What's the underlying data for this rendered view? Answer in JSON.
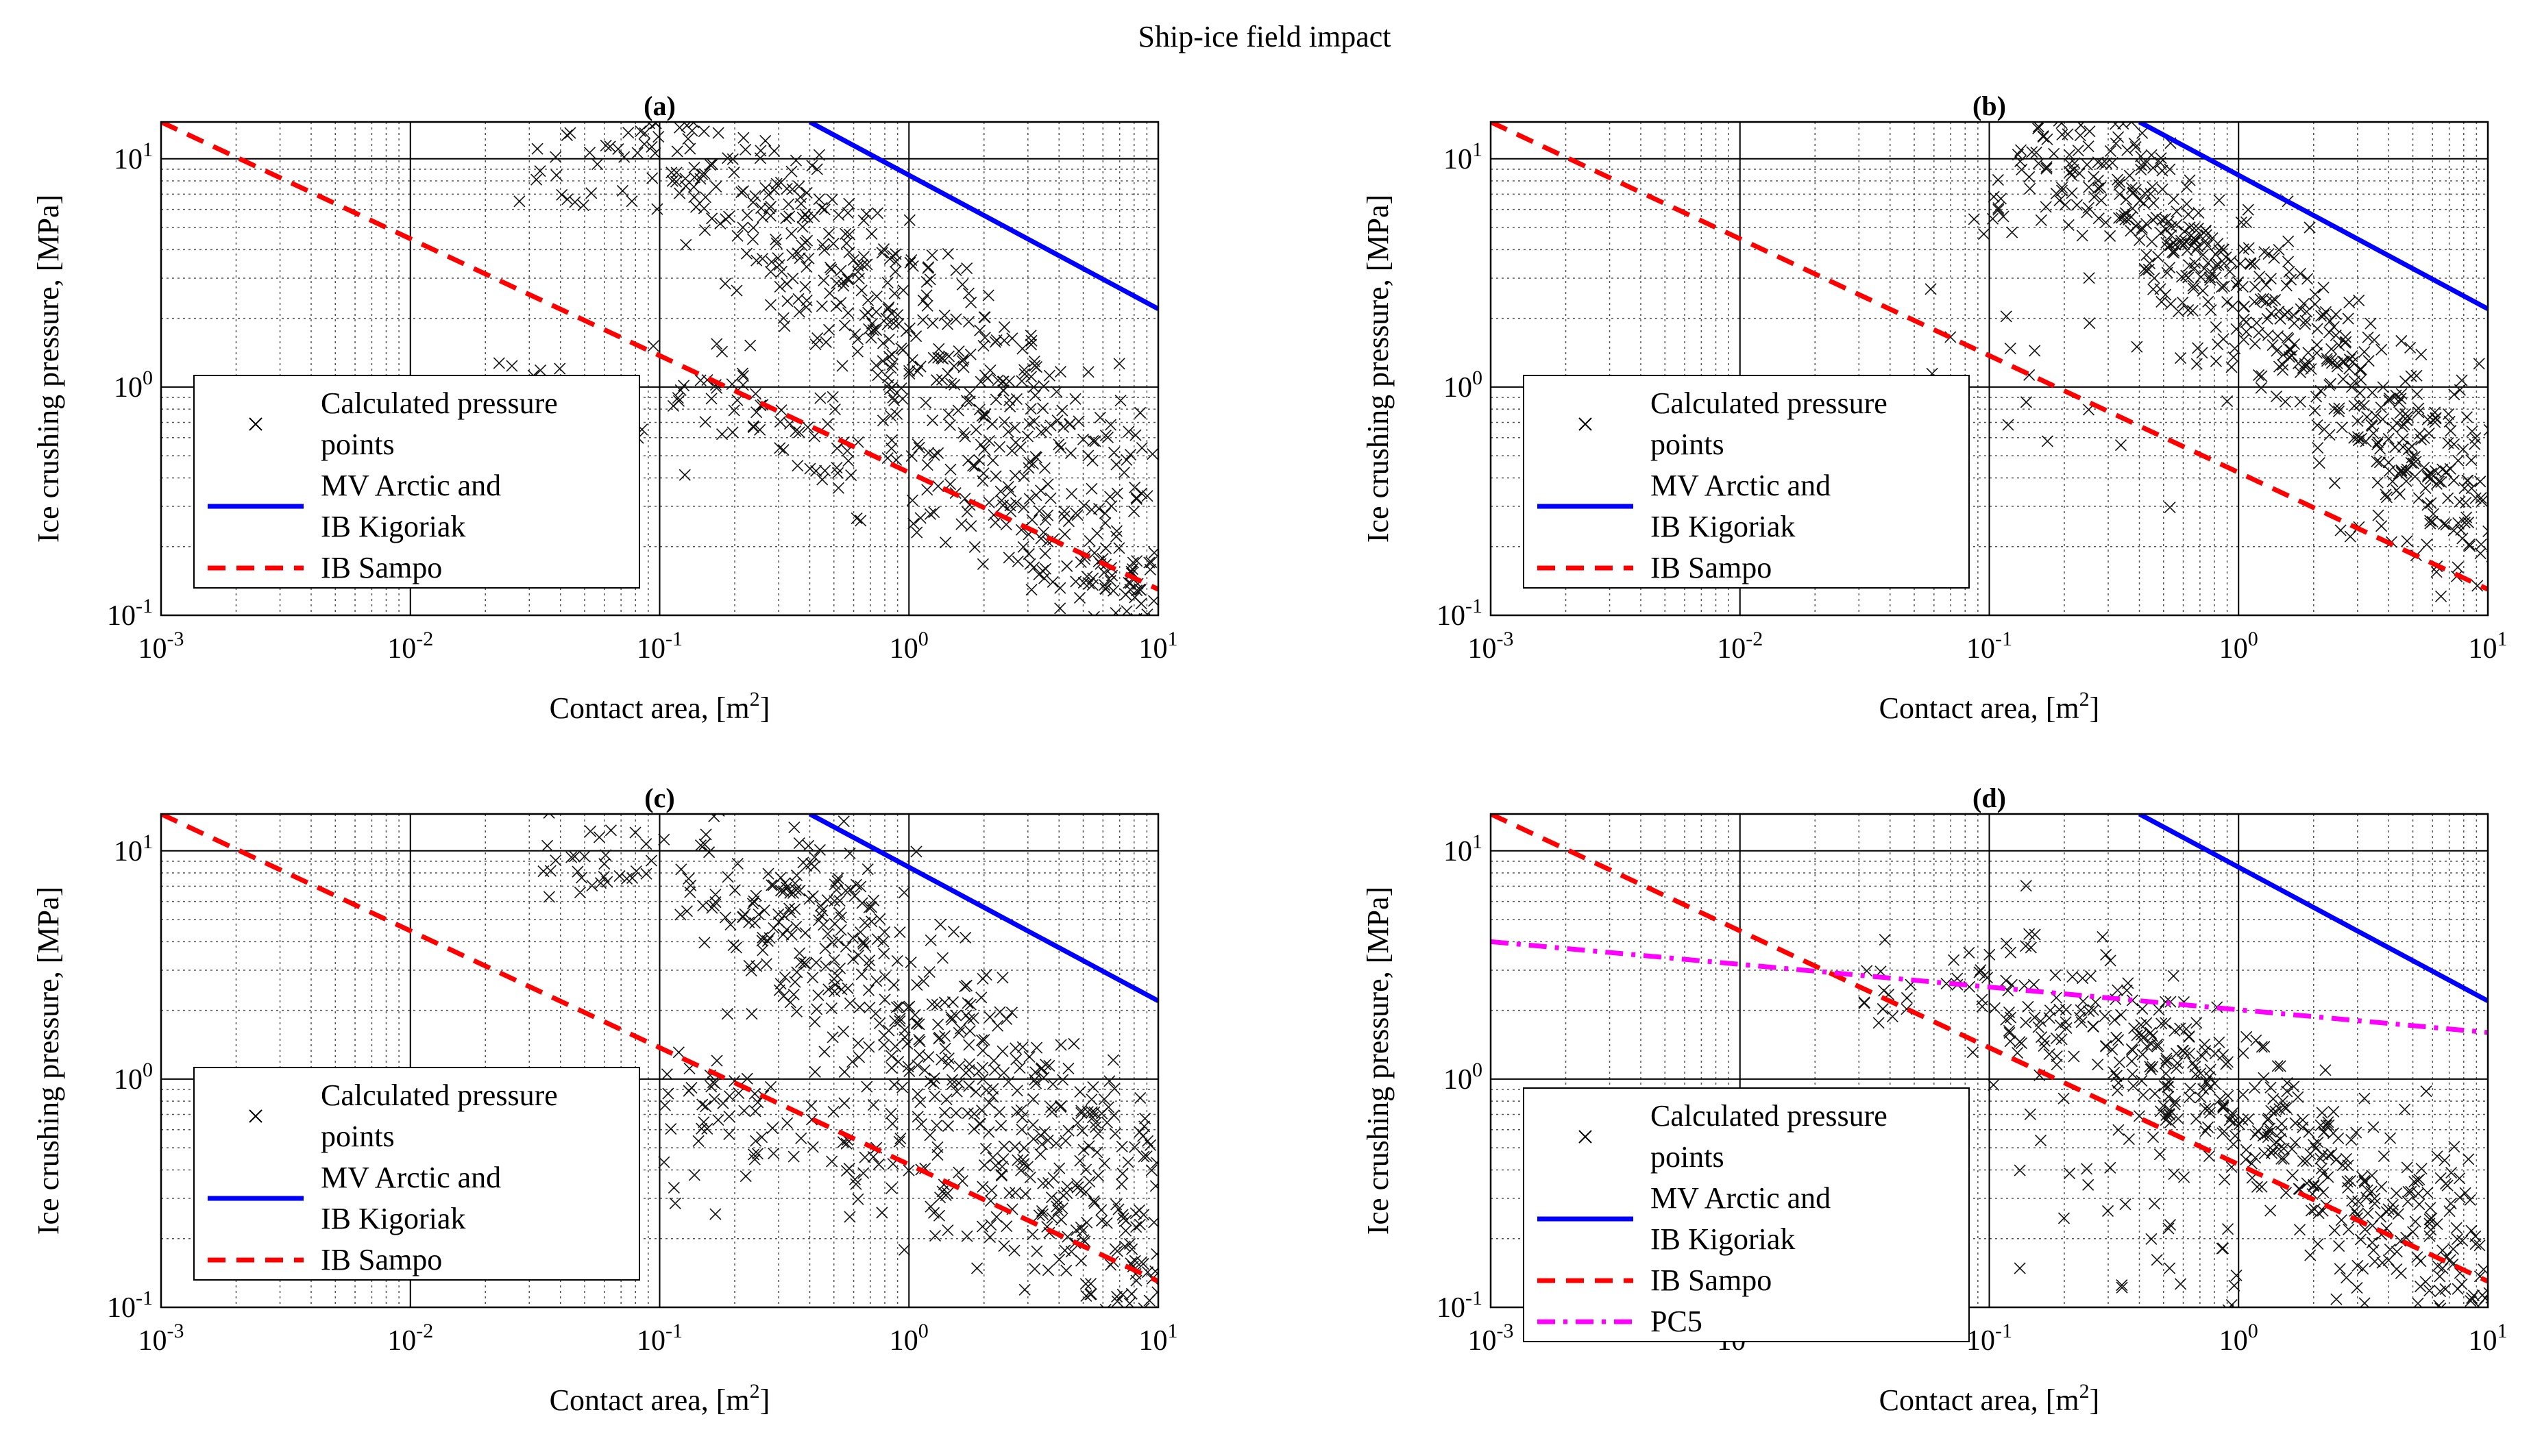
{
  "figure_title": "Ship-ice field impact",
  "chart_data": [
    {
      "type": "scatter",
      "panel_label": "(a)",
      "xlabel": "Contact area, [m²]",
      "ylabel": "Ice crushing pressure, [MPa]",
      "xscale": "log",
      "yscale": "log",
      "xlim": [
        0.001,
        10
      ],
      "ylim": [
        0.1,
        14.5
      ],
      "x_tick_labels": [
        "10-3",
        "10-2",
        "10-1",
        "100",
        "101"
      ],
      "y_tick_labels": [
        "10-1",
        "100",
        "101"
      ],
      "grid": true,
      "legend_placement": "center-left",
      "legend": [
        "Calculated pressure points",
        "MV Arctic and IB Kigoriak",
        "IB Sampo"
      ],
      "series": [
        {
          "name": "MV Arctic and IB Kigoriak",
          "kind": "line",
          "style": "solid",
          "color": "#0000ff",
          "x": [
            0.4,
            10
          ],
          "y": [
            14.5,
            2.2
          ]
        },
        {
          "name": "IB Sampo",
          "kind": "line",
          "style": "dashed",
          "color": "#ff0000",
          "x": [
            0.001,
            10
          ],
          "y": [
            14.5,
            0.13
          ]
        }
      ],
      "scatter_clusters": [
        {
          "x": [
            0.1,
            10
          ],
          "y": [
            13,
            0.12
          ],
          "spread": 0.2,
          "n": 320
        },
        {
          "x": [
            0.2,
            10
          ],
          "y": [
            11,
            0.4
          ],
          "spread": 0.15,
          "n": 180
        },
        {
          "x": [
            0.12,
            10
          ],
          "y": [
            1.2,
            0.1
          ],
          "spread": 0.12,
          "n": 130
        },
        {
          "x": [
            0.03,
            0.1
          ],
          "y": [
            7,
            13
          ],
          "spread": 0.12,
          "n": 30
        },
        {
          "x": [
            0.02,
            0.2
          ],
          "y": [
            1.0,
            0.4
          ],
          "spread": 0.2,
          "n": 14
        }
      ]
    },
    {
      "type": "scatter",
      "panel_label": "(b)",
      "xlabel": "Contact area, [m²]",
      "ylabel": "Ice crushing pressure, [MPa]",
      "xscale": "log",
      "yscale": "log",
      "xlim": [
        0.001,
        10
      ],
      "ylim": [
        0.1,
        14.5
      ],
      "x_tick_labels": [
        "10-3",
        "10-2",
        "10-1",
        "100",
        "101"
      ],
      "y_tick_labels": [
        "10-1",
        "100",
        "101"
      ],
      "grid": true,
      "legend_placement": "center-left",
      "legend": [
        "Calculated pressure points",
        "MV Arctic and IB Kigoriak",
        "IB Sampo"
      ],
      "series": [
        {
          "name": "MV Arctic and IB Kigoriak",
          "kind": "line",
          "style": "solid",
          "color": "#0000ff",
          "x": [
            0.4,
            10
          ],
          "y": [
            14.5,
            2.2
          ]
        },
        {
          "name": "IB Sampo",
          "kind": "line",
          "style": "dashed",
          "color": "#ff0000",
          "x": [
            0.001,
            10
          ],
          "y": [
            14.5,
            0.13
          ]
        }
      ],
      "scatter_clusters": [
        {
          "x": [
            0.15,
            10
          ],
          "y": [
            14,
            0.4
          ],
          "spread": 0.2,
          "n": 340
        },
        {
          "x": [
            0.3,
            10
          ],
          "y": [
            8,
            0.25
          ],
          "spread": 0.18,
          "n": 180
        },
        {
          "x": [
            0.1,
            0.3
          ],
          "y": [
            6,
            14
          ],
          "spread": 0.12,
          "n": 40
        },
        {
          "x": [
            0.04,
            0.5
          ],
          "y": [
            1.8,
            0.6
          ],
          "spread": 0.2,
          "n": 16
        },
        {
          "x": [
            2,
            10
          ],
          "y": [
            0.3,
            0.12
          ],
          "spread": 0.1,
          "n": 12
        }
      ]
    },
    {
      "type": "scatter",
      "panel_label": "(c)",
      "xlabel": "Contact area, [m²]",
      "ylabel": "Ice crushing pressure, [MPa]",
      "xscale": "log",
      "yscale": "log",
      "xlim": [
        0.001,
        10
      ],
      "ylim": [
        0.1,
        14.5
      ],
      "x_tick_labels": [
        "10-3",
        "10-2",
        "10-1",
        "100",
        "101"
      ],
      "y_tick_labels": [
        "10-1",
        "100",
        "101"
      ],
      "grid": true,
      "legend_placement": "center-left",
      "legend": [
        "Calculated pressure points",
        "MV Arctic and IB Kigoriak",
        "IB Sampo"
      ],
      "series": [
        {
          "name": "MV Arctic and IB Kigoriak",
          "kind": "line",
          "style": "solid",
          "color": "#0000ff",
          "x": [
            0.4,
            10
          ],
          "y": [
            14.5,
            2.2
          ]
        },
        {
          "name": "IB Sampo",
          "kind": "line",
          "style": "dashed",
          "color": "#ff0000",
          "x": [
            0.001,
            10
          ],
          "y": [
            14.5,
            0.13
          ]
        }
      ],
      "scatter_clusters": [
        {
          "x": [
            0.12,
            10
          ],
          "y": [
            11,
            0.15
          ],
          "spread": 0.2,
          "n": 320
        },
        {
          "x": [
            0.3,
            10
          ],
          "y": [
            9,
            0.4
          ],
          "spread": 0.15,
          "n": 170
        },
        {
          "x": [
            0.1,
            10
          ],
          "y": [
            1.0,
            0.12
          ],
          "spread": 0.12,
          "n": 130
        },
        {
          "x": [
            0.03,
            0.1
          ],
          "y": [
            7,
            12
          ],
          "spread": 0.12,
          "n": 30
        },
        {
          "x": [
            0.03,
            0.2
          ],
          "y": [
            0.9,
            0.35
          ],
          "spread": 0.2,
          "n": 14
        }
      ]
    },
    {
      "type": "scatter",
      "panel_label": "(d)",
      "xlabel": "Contact area, [m²]",
      "ylabel": "Ice crushing pressure, [MPa]",
      "xscale": "log",
      "yscale": "log",
      "xlim": [
        0.001,
        10
      ],
      "ylim": [
        0.1,
        14.5
      ],
      "x_tick_labels": [
        "10-3",
        "10-2",
        "10-1",
        "100",
        "101"
      ],
      "y_tick_labels": [
        "10-1",
        "100",
        "101"
      ],
      "grid": true,
      "legend_placement": "lower-left",
      "legend": [
        "Calculated pressure points",
        "MV Arctic and IB Kigoriak",
        "IB Sampo",
        "PC5"
      ],
      "series": [
        {
          "name": "MV Arctic and IB Kigoriak",
          "kind": "line",
          "style": "solid",
          "color": "#0000ff",
          "x": [
            0.4,
            10
          ],
          "y": [
            14.5,
            2.2
          ]
        },
        {
          "name": "IB Sampo",
          "kind": "line",
          "style": "dashed",
          "color": "#ff0000",
          "x": [
            0.001,
            10
          ],
          "y": [
            14.5,
            0.13
          ]
        },
        {
          "name": "PC5",
          "kind": "line",
          "style": "dashdot",
          "color": "#ff00ff",
          "x": [
            0.001,
            10
          ],
          "y": [
            4.0,
            1.6
          ]
        }
      ],
      "scatter_clusters": [
        {
          "x": [
            0.1,
            10
          ],
          "y": [
            3,
            0.1
          ],
          "spread": 0.18,
          "n": 300
        },
        {
          "x": [
            0.3,
            10
          ],
          "y": [
            2,
            0.2
          ],
          "spread": 0.15,
          "n": 150
        },
        {
          "x": [
            0.03,
            0.12
          ],
          "y": [
            2,
            3.3
          ],
          "spread": 0.08,
          "n": 25
        },
        {
          "x": [
            0.1,
            1
          ],
          "y": [
            0.5,
            0.12
          ],
          "spread": 0.2,
          "n": 30
        },
        {
          "x": [
            0.03,
            0.1
          ],
          "y": [
            0.3,
            0.2
          ],
          "spread": 0.15,
          "n": 6
        }
      ]
    }
  ]
}
